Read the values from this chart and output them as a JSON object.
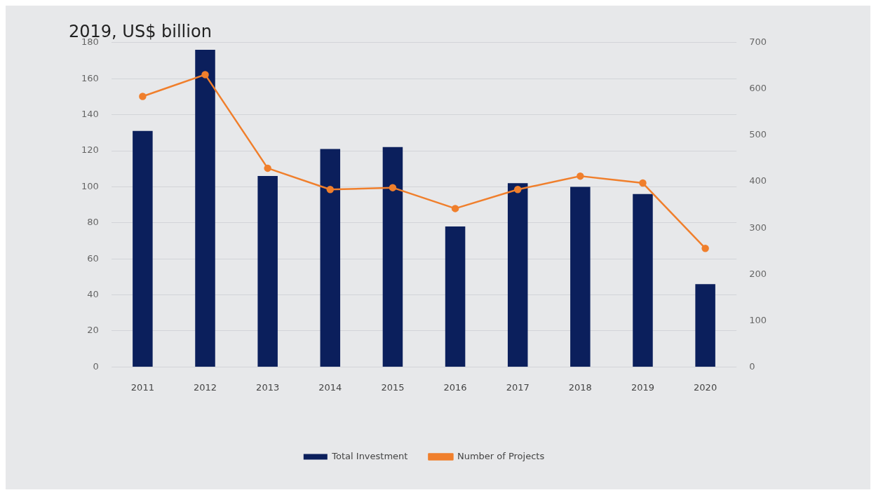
{
  "chart_data": {
    "type": "bar",
    "title": "2019, US$ billion",
    "categories": [
      "2011",
      "2012",
      "2013",
      "2014",
      "2015",
      "2016",
      "2017",
      "2018",
      "2019",
      "2020"
    ],
    "series": [
      {
        "name": "Total Investment",
        "color": "#0b1f5c",
        "values": [
          131,
          176,
          106,
          121,
          122,
          78,
          102,
          100,
          96,
          46
        ]
      },
      {
        "name": "Number of Projects",
        "type": "line",
        "axis": "y2",
        "color": "#f07f2c",
        "values": [
          584,
          631,
          429,
          383,
          387,
          342,
          383,
          412,
          397,
          256
        ]
      }
    ],
    "ylim": [
      0,
      180
    ],
    "yticks": [
      0,
      20,
      40,
      60,
      80,
      100,
      120,
      140,
      160,
      180
    ],
    "y2lim": [
      0,
      700
    ],
    "y2ticks": [
      0,
      100,
      200,
      300,
      400,
      500,
      600,
      700
    ],
    "grid": "y",
    "legend": "bottom",
    "marker": "circle",
    "line_style": "solid"
  }
}
